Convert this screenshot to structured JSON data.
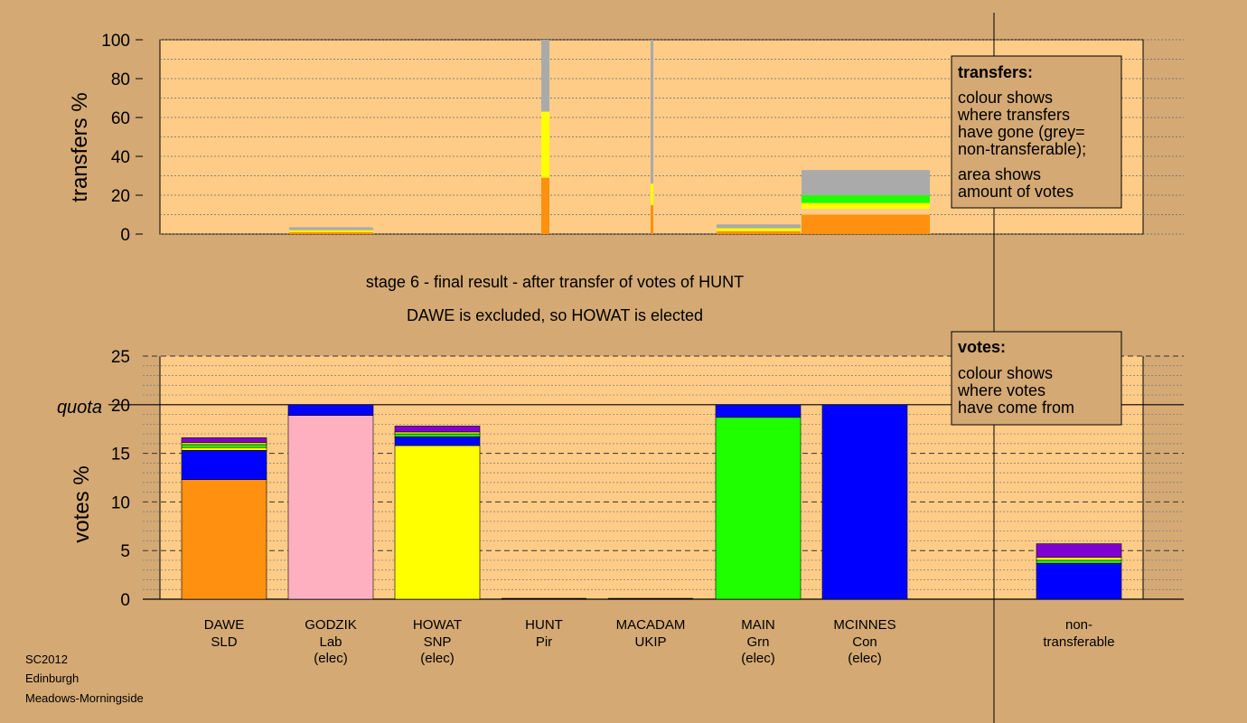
{
  "subtitle": {
    "line1": "stage 6 - final result - after transfer of votes of HUNT",
    "line2": "DAWE is excluded, so HOWAT is elected"
  },
  "footer": [
    "SC2012",
    "Edinburgh",
    "Meadows-Morningside"
  ],
  "colors": {
    "background": "#d4a974",
    "plot_bg": "#ffcc88",
    "SLD": "#ff9010",
    "Lab": "#ffb0c0",
    "SNP": "#ffff00",
    "Grn": "#20ff00",
    "Con": "#0000ff",
    "UKIP": "#8000d0",
    "Pir": "#000000",
    "grey": "#aaaaaa"
  },
  "chart_data": [
    {
      "type": "bar",
      "title": "",
      "ylabel": "transfers %",
      "ylim": [
        0,
        100
      ],
      "yticks": [
        0,
        20,
        40,
        60,
        80,
        100
      ],
      "legend": {
        "position": "top-right",
        "title": "transfers:",
        "lines": [
          "colour shows",
          "where transfers",
          "have gone (grey=",
          "non-transferable);",
          "area shows",
          "amount of votes"
        ]
      },
      "bars": [
        {
          "candidate": "GODZIK",
          "segments": [
            {
              "color": "SLD",
              "value": 1
            },
            {
              "color": "SNP",
              "value": 1
            },
            {
              "color": "grey",
              "value": 1.5
            }
          ]
        },
        {
          "candidate": "HOWAT",
          "segments": [
            {
              "color": "SLD",
              "value": 29
            },
            {
              "color": "SNP",
              "value": 34
            },
            {
              "color": "grey",
              "value": 37
            }
          ]
        },
        {
          "candidate": "HUNT",
          "segments": [
            {
              "color": "SLD",
              "value": 15
            },
            {
              "color": "SNP",
              "value": 11
            },
            {
              "color": "grey",
              "value": 74
            }
          ]
        },
        {
          "candidate": "MAIN",
          "segments": [
            {
              "color": "SLD",
              "value": 1.5
            },
            {
              "color": "SNP",
              "value": 1.5
            },
            {
              "color": "grey",
              "value": 2
            }
          ]
        },
        {
          "candidate": "MCINNES",
          "segments": [
            {
              "color": "SLD",
              "value": 10
            },
            {
              "color": "plot_bg",
              "value": 3
            },
            {
              "color": "SNP",
              "value": 3
            },
            {
              "color": "Grn",
              "value": 4
            },
            {
              "color": "grey",
              "value": 13
            }
          ]
        }
      ]
    },
    {
      "type": "bar",
      "title": "",
      "ylabel": "votes %",
      "ylim": [
        0,
        25
      ],
      "yticks": [
        0,
        5,
        10,
        15,
        20,
        25
      ],
      "quota": {
        "label": "quota",
        "value": 20
      },
      "legend": {
        "position": "top-right",
        "title": "votes:",
        "lines": [
          "colour shows",
          "where votes",
          "have come from"
        ]
      },
      "candidates": [
        {
          "name": "DAWE",
          "party": "SLD",
          "status": "",
          "segments": [
            {
              "color": "SLD",
              "value": 12.3
            },
            {
              "color": "Con",
              "value": 3.0
            },
            {
              "color": "SNP",
              "value": 0.3
            },
            {
              "color": "Grn",
              "value": 0.3
            },
            {
              "color": "SNP",
              "value": 0.2
            },
            {
              "color": "UKIP",
              "value": 0.5
            }
          ]
        },
        {
          "name": "GODZIK",
          "party": "Lab",
          "status": "(elec)",
          "segments": [
            {
              "color": "Lab",
              "value": 18.9
            },
            {
              "color": "Con",
              "value": 1.1
            }
          ]
        },
        {
          "name": "HOWAT",
          "party": "SNP",
          "status": "(elec)",
          "segments": [
            {
              "color": "SNP",
              "value": 15.8
            },
            {
              "color": "Con",
              "value": 0.9
            },
            {
              "color": "Grn",
              "value": 0.3
            },
            {
              "color": "SNP",
              "value": 0.2
            },
            {
              "color": "UKIP",
              "value": 0.6
            }
          ]
        },
        {
          "name": "HUNT",
          "party": "Pir",
          "status": "",
          "segments": []
        },
        {
          "name": "MACADAM",
          "party": "UKIP",
          "status": "",
          "segments": []
        },
        {
          "name": "MAIN",
          "party": "Grn",
          "status": "(elec)",
          "segments": [
            {
              "color": "Grn",
              "value": 18.7
            },
            {
              "color": "Con",
              "value": 1.3
            }
          ]
        },
        {
          "name": "MCINNES",
          "party": "Con",
          "status": "(elec)",
          "segments": [
            {
              "color": "Con",
              "value": 20
            }
          ]
        }
      ],
      "nontransferable": {
        "label1": "non-",
        "label2": "transferable",
        "segments": [
          {
            "color": "Con",
            "value": 3.7
          },
          {
            "color": "Grn",
            "value": 0.3
          },
          {
            "color": "SNP",
            "value": 0.3
          },
          {
            "color": "UKIP",
            "value": 1.4
          }
        ]
      }
    }
  ]
}
